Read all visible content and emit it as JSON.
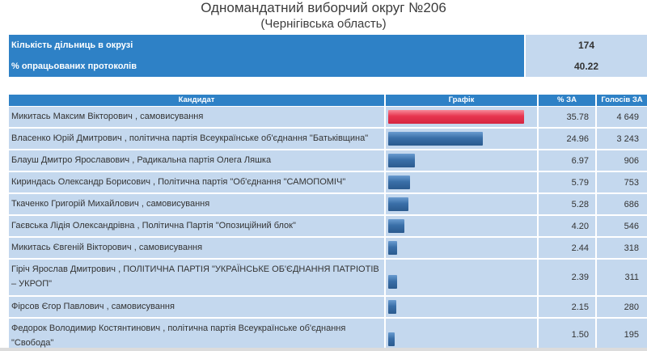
{
  "header": {
    "title": "Одномандатний виборчий округ №206",
    "subtitle": "(Чернігівська область)"
  },
  "summary": [
    {
      "label": "Кількість дільниць в окрузі",
      "value": "174"
    },
    {
      "label": "% опрацьованих протоколів",
      "value": "40.22"
    }
  ],
  "table": {
    "headers": {
      "candidate": "Кандидат",
      "graph": "Графік",
      "pct": "% ЗА",
      "votes": "Голосів ЗА"
    },
    "rows": [
      {
        "name": "Микитась Максим Вікторович",
        "party": ", самовисування",
        "pct": "35.78",
        "votes": "4 649",
        "share": 35.78,
        "lead": true
      },
      {
        "name": "Власенко Юрій Дмитрович",
        "party": ", політична партія Всеукраїнське об'єднання \"Батьківщина\"",
        "pct": "24.96",
        "votes": "3 243",
        "share": 24.96
      },
      {
        "name": "Блауш Дмитро Ярославович",
        "party": ", Радикальна партія Олега Ляшка",
        "pct": "6.97",
        "votes": "906",
        "share": 6.97
      },
      {
        "name": "Кириндась Олександр Борисович",
        "party": ", Політична партія \"Об'єднання \"САМОПОМІЧ\"",
        "pct": "5.79",
        "votes": "753",
        "share": 5.79
      },
      {
        "name": "Ткаченко Григорій Михайлович",
        "party": ", самовисування",
        "pct": "5.28",
        "votes": "686",
        "share": 5.28
      },
      {
        "name": "Гаєвська Лідія Олександрівна",
        "party": ", Політична Партія \"Опозиційний блок\"",
        "pct": "4.20",
        "votes": "546",
        "share": 4.2
      },
      {
        "name": "Микитась Євгеній Вікторович",
        "party": ", самовисування",
        "pct": "2.44",
        "votes": "318",
        "share": 2.44
      },
      {
        "name": "Гіріч Ярослав Дмитрович",
        "party": ", ПОЛІТИЧНА ПАРТІЯ \"УКРАЇНСЬКЕ ОБ'ЄДНАННЯ ПАТРІОТІВ – УКРОП\"",
        "pct": "2.39",
        "votes": "311",
        "share": 2.39
      },
      {
        "name": "Фірсов Єгор Павлович",
        "party": ", самовисування",
        "pct": "2.15",
        "votes": "280",
        "share": 2.15
      },
      {
        "name": "Федорок Володимир Костянтинович",
        "party": ", політична партія Всеукраїнське об'єднання \"Свобода\"",
        "pct": "1.50",
        "votes": "195",
        "share": 1.5
      }
    ]
  }
}
